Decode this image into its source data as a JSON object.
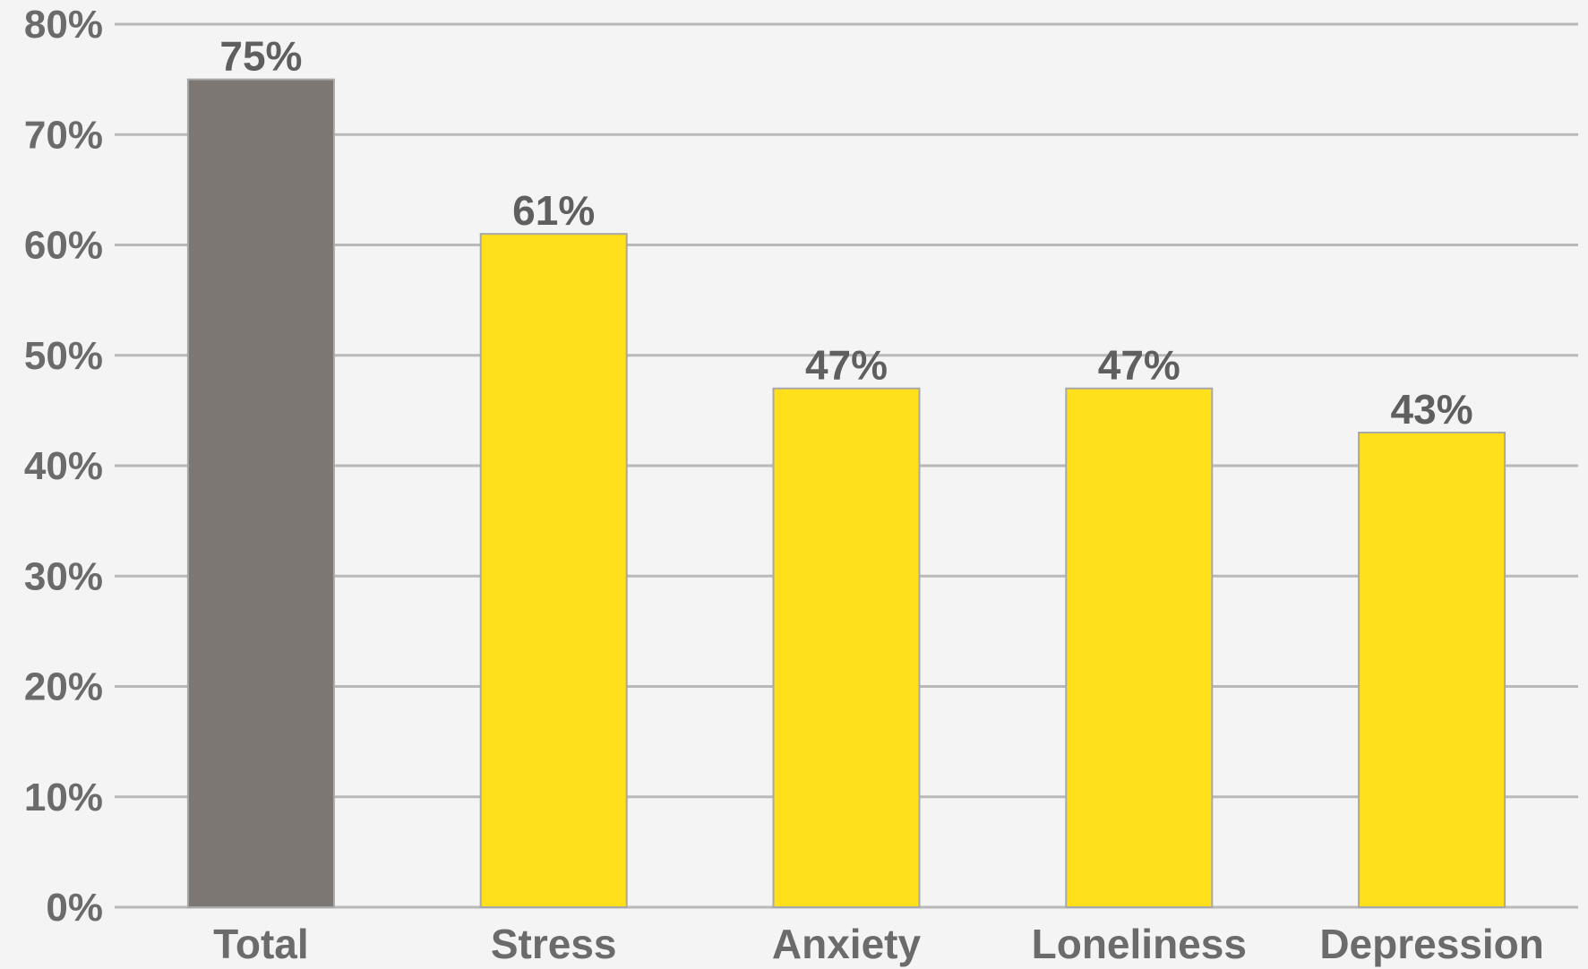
{
  "chart_data": {
    "type": "bar",
    "categories": [
      "Total",
      "Stress",
      "Anxiety",
      "Loneliness",
      "Depression"
    ],
    "values": [
      75,
      61,
      47,
      47,
      43
    ],
    "data_labels": [
      "75%",
      "61%",
      "47%",
      "47%",
      "43%"
    ],
    "bar_colors": [
      "#7d7774",
      "#ffe01b",
      "#ffe01b",
      "#ffe01b",
      "#ffe01b"
    ],
    "ylim": [
      0,
      80
    ],
    "yticks": [
      0,
      10,
      20,
      30,
      40,
      50,
      60,
      70,
      80
    ],
    "ytick_labels": [
      "0%",
      "10%",
      "20%",
      "30%",
      "40%",
      "50%",
      "60%",
      "70%",
      "80%"
    ],
    "grid": true,
    "title": "",
    "xlabel": "",
    "ylabel": ""
  },
  "colors": {
    "background": "#f4f4f4",
    "gridline": "#b9b9b9",
    "label_text": "#6b6b6b",
    "bar_outline": "#a8a8a8"
  }
}
